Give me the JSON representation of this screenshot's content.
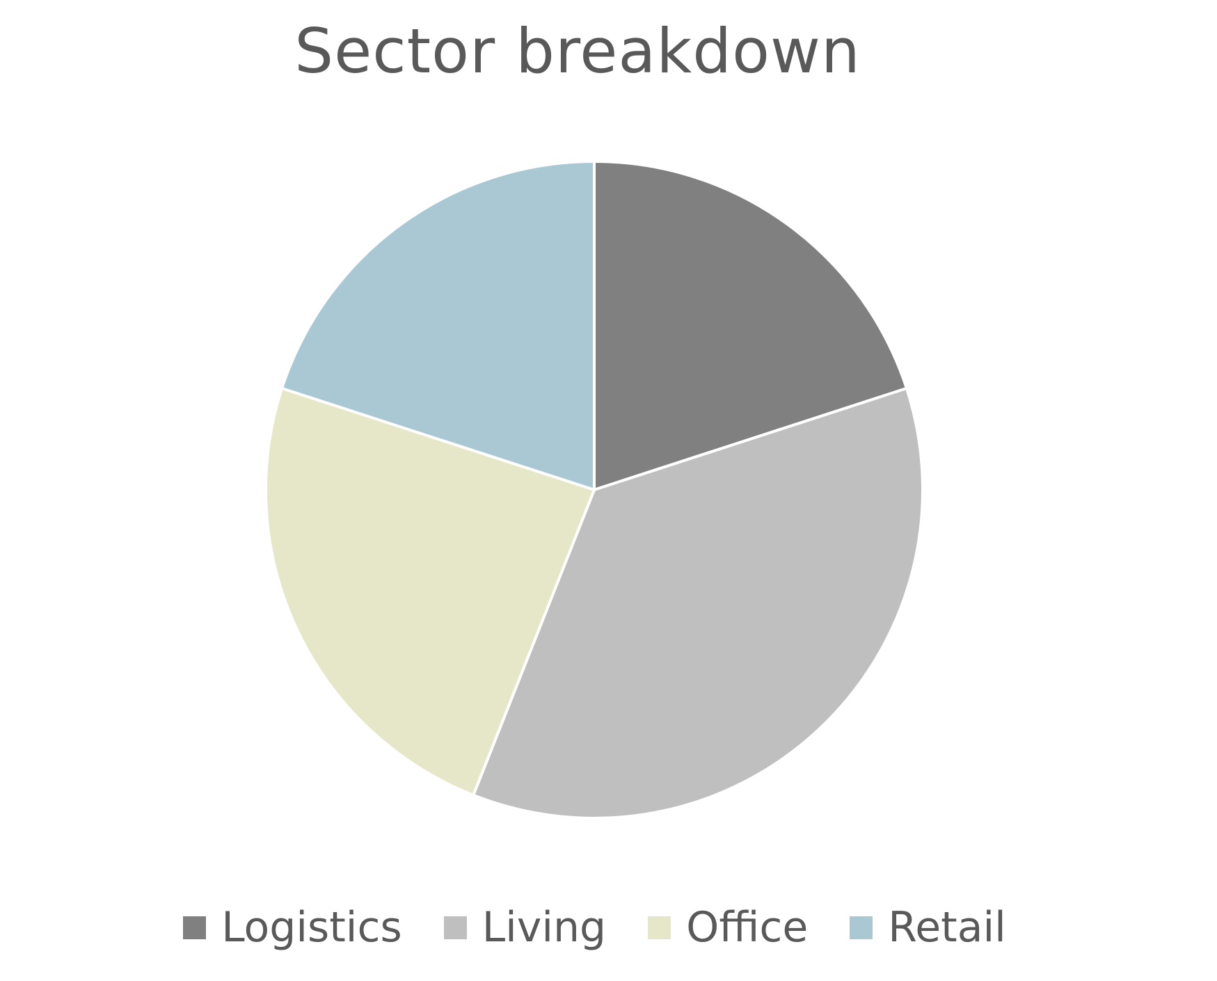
{
  "chart_data": {
    "type": "pie",
    "title": "Sector breakdown",
    "categories": [
      "Logistics",
      "Living",
      "Office",
      "Retail"
    ],
    "values": [
      20,
      36,
      24,
      20
    ],
    "unit": "percent (estimated)",
    "colors": [
      "#808080",
      "#BFBFBF",
      "#E6E6C8",
      "#AAC8D3"
    ],
    "start_angle": "12 o'clock, clockwise",
    "legend_position": "bottom"
  }
}
